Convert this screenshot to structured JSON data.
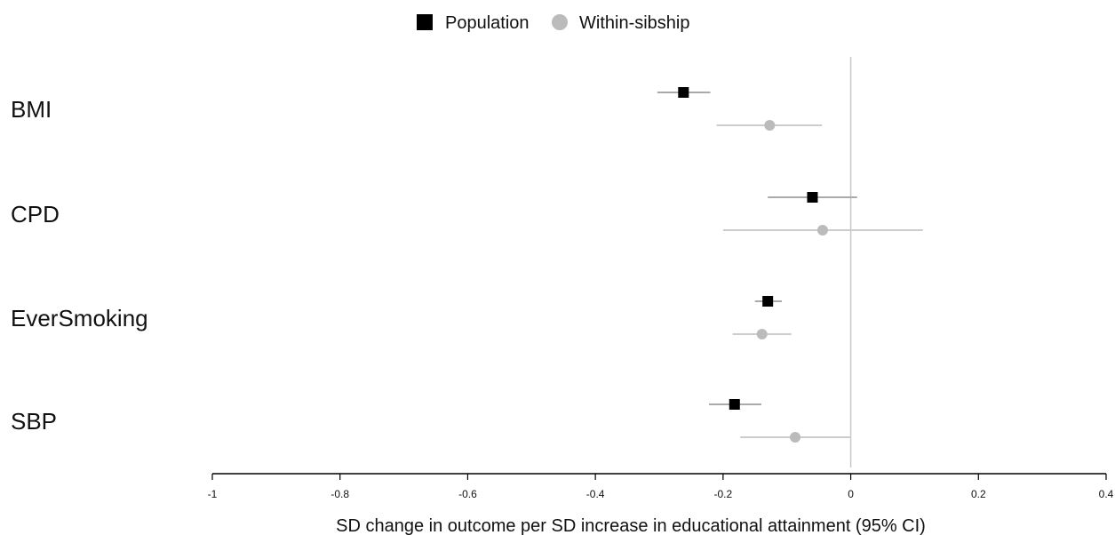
{
  "chart_data": {
    "type": "forest",
    "categories": [
      "BMI",
      "CPD",
      "EverSmoking",
      "SBP"
    ],
    "series": [
      {
        "name": "Population",
        "marker": "square",
        "color": "#000000",
        "ci_color": "#aaaaaa",
        "values": [
          -0.262,
          -0.06,
          -0.13,
          -0.182
        ],
        "lower": [
          -0.303,
          -0.13,
          -0.15,
          -0.222
        ],
        "upper": [
          -0.22,
          0.01,
          -0.108,
          -0.14
        ]
      },
      {
        "name": "Within-sibship",
        "marker": "circle",
        "color": "#bbbbbb",
        "ci_color": "#cccccc",
        "values": [
          -0.127,
          -0.044,
          -0.139,
          -0.087
        ],
        "lower": [
          -0.21,
          -0.2,
          -0.185,
          -0.173
        ],
        "upper": [
          -0.045,
          0.113,
          -0.093,
          0.0
        ]
      }
    ],
    "xlabel": "SD change in outcome per SD increase in educational attainment (95% CI)",
    "xlim": [
      -1,
      0.4
    ],
    "xticks": [
      -1,
      -0.8,
      -0.6,
      -0.4,
      -0.2,
      0,
      0.2,
      0.4
    ],
    "xtick_labels": [
      "-1",
      "-0.8",
      "-0.6",
      "-0.4",
      "-0.2",
      "0",
      "0.2",
      "0.4"
    ],
    "reference_line": 0,
    "legend_position": "top-center",
    "grid": false
  }
}
